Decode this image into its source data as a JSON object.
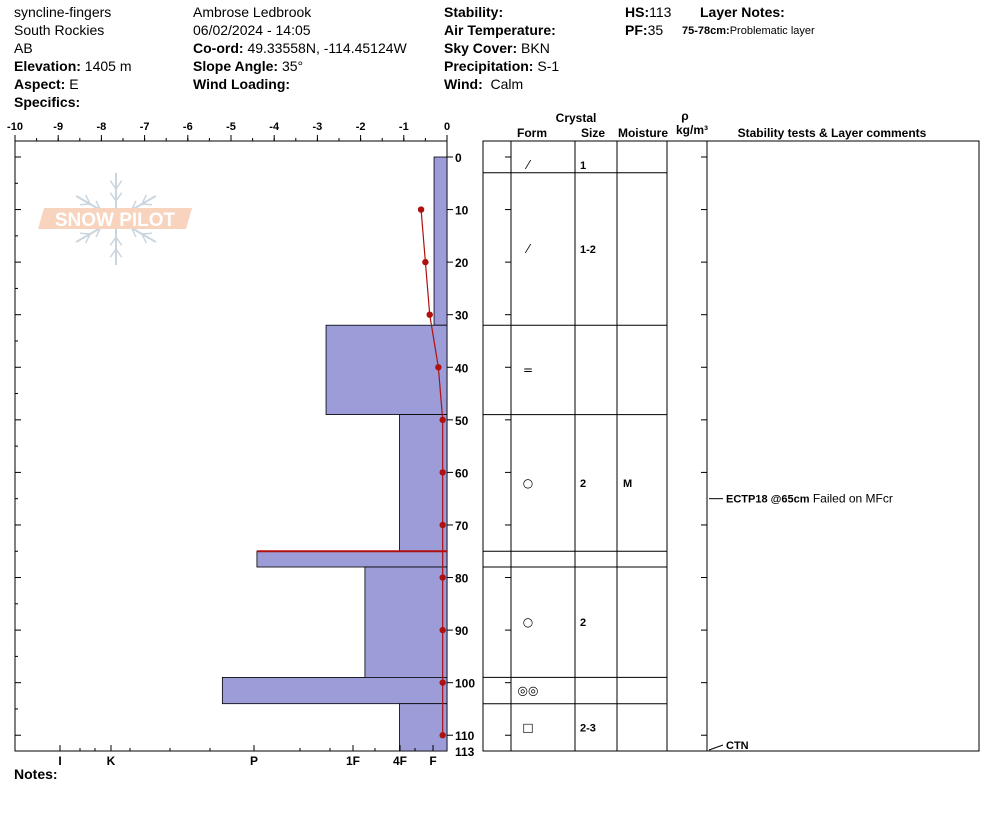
{
  "header": {
    "location": "syncline-fingers",
    "range": "South Rockies",
    "province": "AB",
    "elevation_label": "Elevation:",
    "elevation": "1405 m",
    "aspect_label": "Aspect:",
    "aspect": "E",
    "specifics_label": "Specifics:",
    "observer": "Ambrose Ledbrook",
    "datetime": "06/02/2024 - 14:05",
    "coord_label": "Co-ord:",
    "coord": "49.33558N, -114.45124W",
    "slope_label": "Slope Angle:",
    "slope": "35°",
    "wind_loading_label": "Wind Loading:",
    "stability_label": "Stability:",
    "air_temp_label": "Air Temperature:",
    "sky_label": "Sky Cover:",
    "sky": "BKN",
    "precip_label": "Precipitation:",
    "precip": "S-1",
    "wind_label": "Wind:",
    "wind": "Calm",
    "hs_label": "HS:",
    "hs": "113",
    "pf_label": "PF:",
    "pf": "35",
    "layer_notes_label": "Layer Notes:",
    "layer_note_depth": "75-78cm:",
    "layer_note_text": "Problematic layer",
    "notes_label": "Notes:"
  },
  "logo_text": "SNOW PILOT",
  "colors": {
    "hardness_fill": "#9b9cd8",
    "temp_line": "#b01010",
    "problem_line": "#b01010"
  },
  "chart_data": {
    "type": "bar",
    "temp_axis": {
      "ticks": [
        -10,
        -9,
        -8,
        -7,
        -6,
        -5,
        -4,
        -3,
        -2,
        -1,
        0
      ],
      "labels": [
        "-10",
        "-9",
        "-8",
        "-7",
        "-6",
        "-5",
        "-4",
        "-3",
        "-2",
        "-1",
        "0"
      ],
      "range": [
        -10,
        0
      ]
    },
    "depth_axis": {
      "ticks": [
        0,
        10,
        20,
        30,
        40,
        50,
        60,
        70,
        80,
        90,
        100,
        110
      ],
      "labels": [
        "0",
        "10",
        "20",
        "30",
        "40",
        "50",
        "60",
        "70",
        "80",
        "90",
        "100",
        "110"
      ],
      "bottom_label": "113",
      "range": [
        0,
        113
      ]
    },
    "hardness_axis": {
      "labels": [
        "I",
        "K",
        "P",
        "1F",
        "4F",
        "F"
      ]
    },
    "hardness_profile": [
      {
        "top": 0,
        "bottom": 32,
        "hardness_index": 0.3
      },
      {
        "top": 32,
        "bottom": 49,
        "hardness_index": 2.8
      },
      {
        "top": 49,
        "bottom": 75,
        "hardness_index": 1.1
      },
      {
        "top": 75,
        "bottom": 78,
        "hardness_index": 4.4
      },
      {
        "top": 78,
        "bottom": 99,
        "hardness_index": 1.9
      },
      {
        "top": 99,
        "bottom": 104,
        "hardness_index": 5.2
      },
      {
        "top": 104,
        "bottom": 113,
        "hardness_index": 1.1
      }
    ],
    "temperature_profile": [
      {
        "depth": 10,
        "temp": -0.6
      },
      {
        "depth": 20,
        "temp": -0.5
      },
      {
        "depth": 30,
        "temp": -0.4
      },
      {
        "depth": 40,
        "temp": -0.2
      },
      {
        "depth": 50,
        "temp": -0.1
      },
      {
        "depth": 60,
        "temp": -0.1
      },
      {
        "depth": 70,
        "temp": -0.1
      },
      {
        "depth": 80,
        "temp": -0.1
      },
      {
        "depth": 90,
        "temp": -0.1
      },
      {
        "depth": 100,
        "temp": -0.1
      },
      {
        "depth": 110,
        "temp": -0.1
      }
    ],
    "problem_layer_depth": 75,
    "layer_table": {
      "headers": {
        "crystal": "Crystal",
        "form": "Form",
        "size": "Size",
        "moisture": "Moisture",
        "rho": "ρ",
        "density": "kg/m³",
        "comments": "Stability tests & Layer comments"
      },
      "layers": [
        {
          "top": 0,
          "bottom": 3,
          "form": "precipitation-particle",
          "form_symbol": "⁄",
          "size": "1",
          "moisture": ""
        },
        {
          "top": 3,
          "bottom": 32,
          "form": "precipitation-particle",
          "form_symbol": "⁄",
          "size": "1-2",
          "moisture": ""
        },
        {
          "top": 32,
          "bottom": 49,
          "form": "decomposed-fragments",
          "form_symbol": "=",
          "size": "",
          "moisture": ""
        },
        {
          "top": 49,
          "bottom": 75,
          "form": "rounded-grains",
          "form_symbol": "○",
          "size": "2",
          "moisture": "M"
        },
        {
          "top": 75,
          "bottom": 78,
          "form": "",
          "form_symbol": "",
          "size": "",
          "moisture": ""
        },
        {
          "top": 78,
          "bottom": 99,
          "form": "rounded-grains",
          "form_symbol": "○",
          "size": "2",
          "moisture": ""
        },
        {
          "top": 99,
          "bottom": 104,
          "form": "melt-forms",
          "form_symbol": "◎◎",
          "size": "",
          "moisture": ""
        },
        {
          "top": 104,
          "bottom": 113,
          "form": "faceted-crystals",
          "form_symbol": "□",
          "size": "2-3",
          "moisture": ""
        }
      ],
      "tests": [
        {
          "depth": 65,
          "label": "ECTP18 @65cm",
          "text": "Failed on MFcr"
        },
        {
          "depth": 113,
          "label": "CTN",
          "text": ""
        }
      ]
    }
  }
}
